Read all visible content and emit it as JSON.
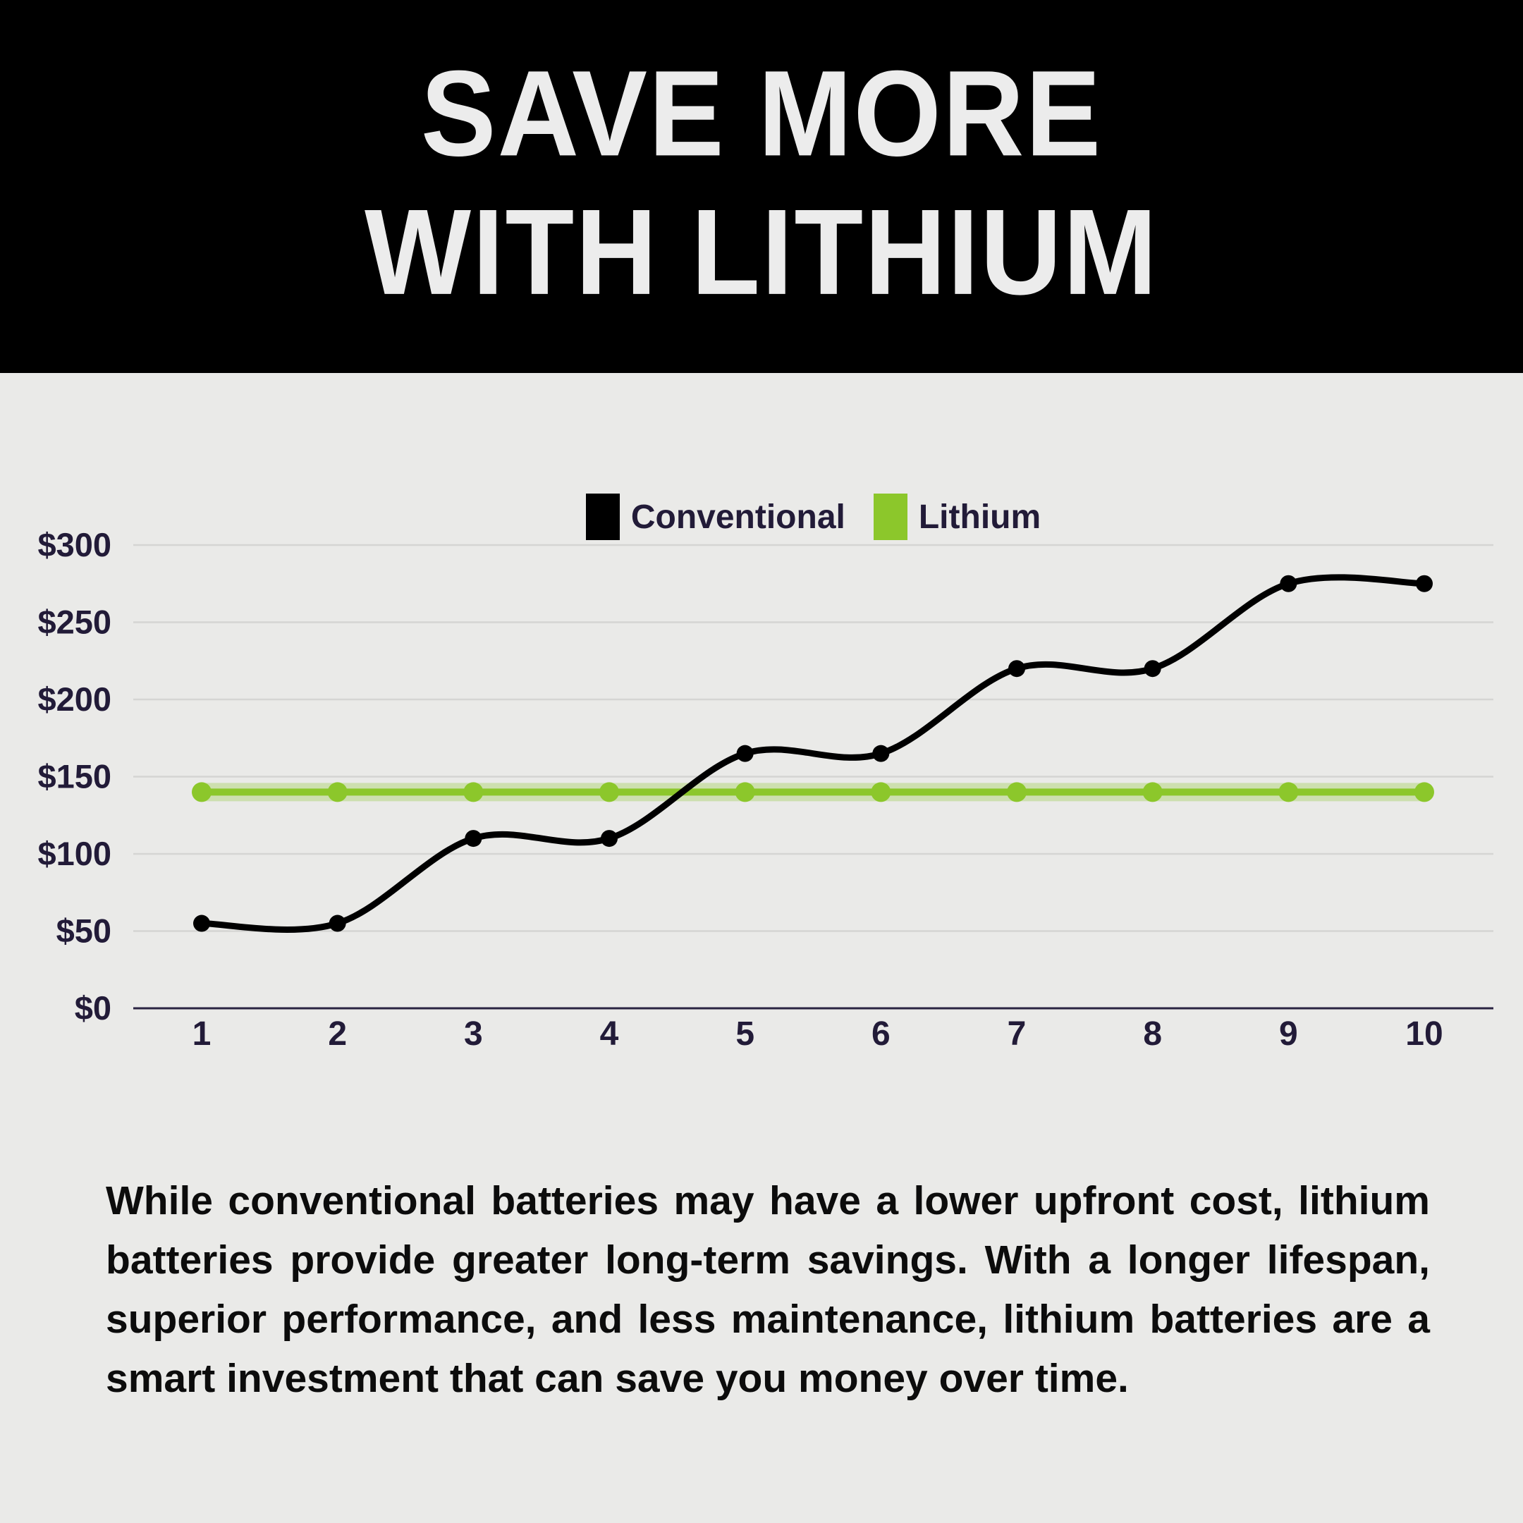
{
  "header": {
    "title_line_1": "SAVE MORE",
    "title_line_2": "WITH LITHIUM"
  },
  "legend": {
    "items": [
      {
        "label": "Conventional",
        "color": "#000000"
      },
      {
        "label": "Lithium",
        "color": "#8CC72B"
      }
    ]
  },
  "chart_data": {
    "type": "line",
    "x": [
      1,
      2,
      3,
      4,
      5,
      6,
      7,
      8,
      9,
      10
    ],
    "ylim": [
      0,
      300
    ],
    "ytick_step": 50,
    "ytick_prefix": "$",
    "ytick_labels": [
      "$0",
      "$50",
      "$100",
      "$150",
      "$200",
      "$250",
      "$300"
    ],
    "grid": true,
    "legend_position": "top-center",
    "series": [
      {
        "name": "Conventional",
        "color": "#000000",
        "smooth": true,
        "values": [
          55,
          55,
          110,
          110,
          165,
          165,
          220,
          220,
          275,
          275
        ]
      },
      {
        "name": "Lithium",
        "color": "#8CC72B",
        "smooth": false,
        "values": [
          140,
          140,
          140,
          140,
          140,
          140,
          140,
          140,
          140,
          140
        ]
      }
    ]
  },
  "body": {
    "paragraph": "While conventional batteries may have a lower upfront cost, lithium batteries provide greater long-term savings. With a longer lifespan, superior performance, and less maintenance, lithium batteries are a smart investment that can save you money over time."
  },
  "colors": {
    "page_bg": "#EAEAE8",
    "header_bg": "#000000",
    "header_text": "#ECECEC",
    "label_text": "#221B38",
    "body_text": "#0C0C0C",
    "gridline": "#D5D5D3",
    "axis_zero_line": "#2A2342",
    "lithium_green": "#8CC72B",
    "lithium_glow": "rgba(139,198,43,0.30)"
  }
}
